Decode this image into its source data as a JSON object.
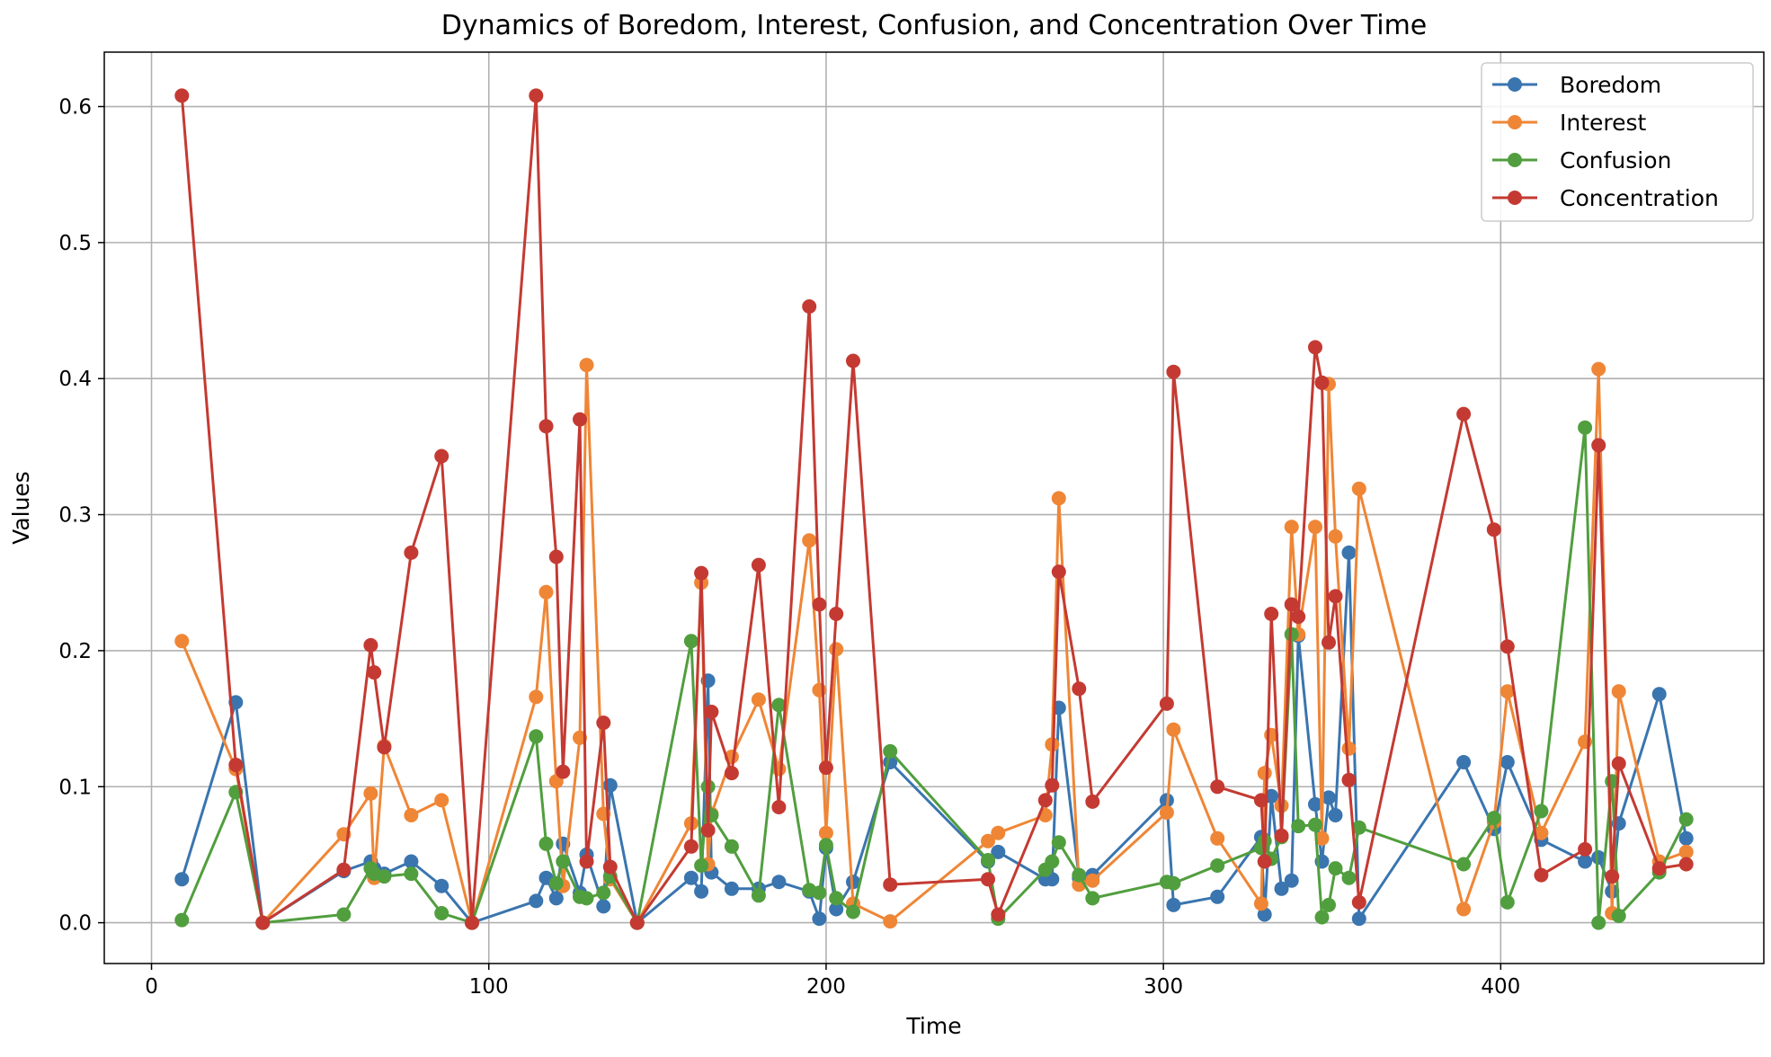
{
  "chart_data": {
    "type": "line",
    "title": "Dynamics of Boredom, Interest, Confusion, and Concentration Over Time",
    "xlabel": "Time",
    "ylabel": "Values",
    "xlim": [
      -14,
      478
    ],
    "ylim": [
      -0.03,
      0.64
    ],
    "xticks": [
      0,
      100,
      200,
      300,
      400
    ],
    "yticks": [
      0.0,
      0.1,
      0.2,
      0.3,
      0.4,
      0.5,
      0.6
    ],
    "grid": true,
    "legend_position": "top-right",
    "x": [
      9,
      25,
      33,
      57,
      65,
      66,
      69,
      77,
      86,
      95,
      114,
      117,
      120,
      122,
      127,
      129,
      134,
      136,
      144,
      160,
      163,
      165,
      166,
      172,
      180,
      186,
      195,
      198,
      200,
      203,
      208,
      219,
      248,
      251,
      265,
      267,
      269,
      275,
      279,
      301,
      303,
      316,
      329,
      330,
      332,
      335,
      338,
      340,
      345,
      347,
      349,
      351,
      355,
      358,
      389,
      398,
      402,
      412,
      425,
      429,
      433,
      435,
      447,
      455
    ],
    "series": [
      {
        "name": "Boredom",
        "color": "#3a75af",
        "values": [
          0.032,
          0.162,
          0.0,
          0.038,
          0.045,
          0.04,
          0.036,
          0.045,
          0.027,
          0.0,
          0.016,
          0.033,
          0.018,
          0.058,
          0.022,
          0.05,
          0.012,
          0.101,
          0.0,
          0.033,
          0.023,
          0.178,
          0.037,
          0.025,
          0.025,
          0.03,
          0.023,
          0.003,
          0.055,
          0.01,
          0.03,
          0.118,
          0.045,
          0.052,
          0.032,
          0.032,
          0.158,
          0.033,
          0.035,
          0.09,
          0.013,
          0.019,
          0.063,
          0.006,
          0.093,
          0.025,
          0.031,
          0.211,
          0.087,
          0.045,
          0.092,
          0.079,
          0.272,
          0.003,
          0.118,
          0.069,
          0.118,
          0.061,
          0.045,
          0.048,
          0.023,
          0.073,
          0.168,
          0.062
        ]
      },
      {
        "name": "Interest",
        "color": "#ef8636",
        "values": [
          0.207,
          0.113,
          0.0,
          0.065,
          0.095,
          0.033,
          0.13,
          0.079,
          0.09,
          0.0,
          0.166,
          0.243,
          0.104,
          0.027,
          0.136,
          0.41,
          0.08,
          0.032,
          0.0,
          0.073,
          0.25,
          0.043,
          0.08,
          0.122,
          0.164,
          0.113,
          0.281,
          0.171,
          0.066,
          0.201,
          0.014,
          0.001,
          0.06,
          0.066,
          0.079,
          0.131,
          0.312,
          0.028,
          0.031,
          0.081,
          0.142,
          0.062,
          0.014,
          0.11,
          0.138,
          0.086,
          0.291,
          0.212,
          0.291,
          0.062,
          0.396,
          0.284,
          0.128,
          0.319,
          0.01,
          0.074,
          0.17,
          0.066,
          0.133,
          0.407,
          0.007,
          0.17,
          0.045,
          0.052
        ]
      },
      {
        "name": "Confusion",
        "color": "#519e3e",
        "values": [
          0.002,
          0.096,
          0.0,
          0.006,
          0.04,
          0.036,
          0.034,
          0.036,
          0.007,
          0.0,
          0.137,
          0.058,
          0.029,
          0.045,
          0.019,
          0.018,
          0.022,
          0.034,
          0.0,
          0.207,
          0.042,
          0.1,
          0.079,
          0.056,
          0.02,
          0.16,
          0.024,
          0.022,
          0.057,
          0.018,
          0.008,
          0.126,
          0.046,
          0.003,
          0.039,
          0.045,
          0.059,
          0.035,
          0.018,
          0.03,
          0.029,
          0.042,
          0.055,
          0.06,
          0.047,
          0.063,
          0.212,
          0.071,
          0.072,
          0.004,
          0.013,
          0.04,
          0.033,
          0.07,
          0.043,
          0.077,
          0.015,
          0.082,
          0.364,
          0.0,
          0.104,
          0.005,
          0.037,
          0.076
        ]
      },
      {
        "name": "Concentration",
        "color": "#c43a32",
        "values": [
          0.608,
          0.116,
          0.0,
          0.039,
          0.204,
          0.184,
          0.129,
          0.272,
          0.343,
          0.0,
          0.608,
          0.365,
          0.269,
          0.111,
          0.37,
          0.045,
          0.147,
          0.041,
          0.0,
          0.056,
          0.257,
          0.068,
          0.155,
          0.11,
          0.263,
          0.085,
          0.453,
          0.234,
          0.114,
          0.227,
          0.413,
          0.028,
          0.032,
          0.006,
          0.09,
          0.101,
          0.258,
          0.172,
          0.089,
          0.161,
          0.405,
          0.1,
          0.09,
          0.045,
          0.227,
          0.064,
          0.234,
          0.225,
          0.423,
          0.397,
          0.206,
          0.24,
          0.105,
          0.015,
          0.374,
          0.289,
          0.203,
          0.035,
          0.054,
          0.351,
          0.034,
          0.117,
          0.04,
          0.043
        ]
      }
    ]
  }
}
